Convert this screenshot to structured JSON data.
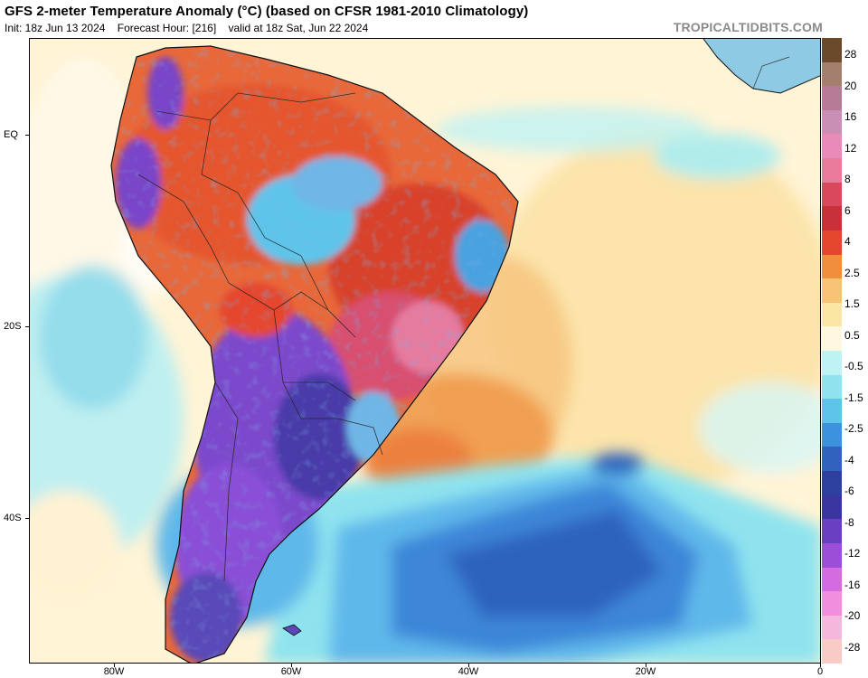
{
  "header": {
    "title": "GFS 2-meter Temperature Anomaly (°C) (based on CFSR 1981-2010 Climatology)",
    "init": "Init: 18z Jun 13 2024",
    "forecast_hour": "Forecast Hour: [216]",
    "valid": "valid at 18z Sat, Jun 22 2024",
    "credit": "TROPICALTIDBITS.COM"
  },
  "axes": {
    "lat_labels": [
      "EQ",
      "20S",
      "40S"
    ],
    "lon_labels": [
      "80W",
      "60W",
      "40W",
      "20W",
      "0"
    ]
  },
  "colorbar": {
    "labels": [
      "28",
      "20",
      "16",
      "12",
      "8",
      "6",
      "4",
      "2.5",
      "1.5",
      "0.5",
      "-0.5",
      "-1.5",
      "-2.5",
      "-4",
      "-6",
      "-8",
      "-12",
      "-16",
      "-20",
      "-28"
    ],
    "colors": [
      "#6b4a2b",
      "#a47f6d",
      "#b77a97",
      "#c98fb4",
      "#e98bb8",
      "#ea7a9a",
      "#d9485c",
      "#c8303a",
      "#e5462e",
      "#f08e3e",
      "#f7c374",
      "#fbe6a4",
      "#fff7df",
      "#bff2f2",
      "#8fe3ee",
      "#5fc4ea",
      "#3c92dc",
      "#2f63bd",
      "#2d3f9f",
      "#3b35a0",
      "#6a3fc2",
      "#9b4fd9",
      "#d46be0",
      "#f18fdc",
      "#f6b7dd",
      "#f8cbc7"
    ]
  },
  "colors": {
    "ocean_warm": "#fbe3a8",
    "ocean_neutral": "#fff6dd",
    "ocean_cool": "#9ee3ef",
    "cold_deep": "#2f63bd",
    "land_hot": "#e5462e",
    "land_cold": "#7a45c8"
  }
}
